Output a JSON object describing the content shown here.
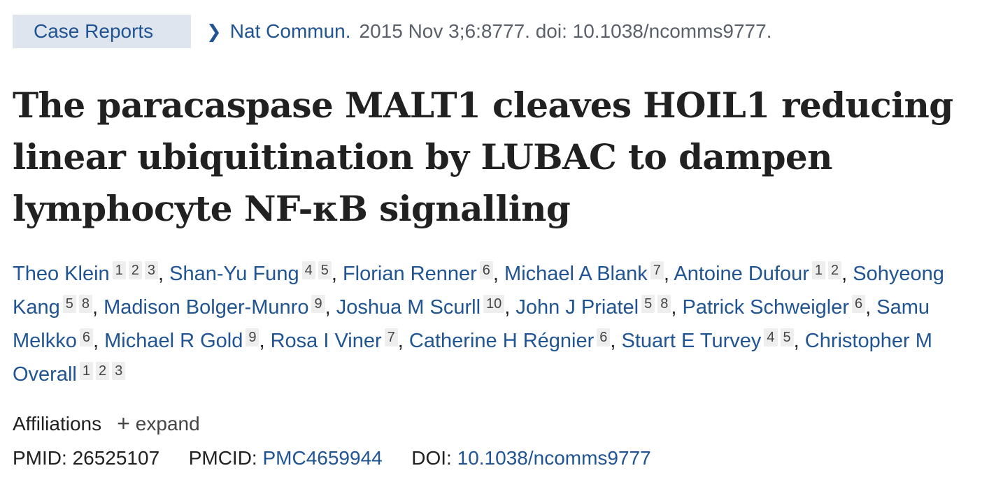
{
  "header": {
    "publication_type": "Case Reports",
    "journal": "Nat Commun.",
    "citation": "2015 Nov 3;6:8777. doi: 10.1038/ncomms9777."
  },
  "title": "The paracaspase MALT1 cleaves HOIL1 reducing linear ubiquitination by LUBAC to dampen lymphocyte NF-κB signalling",
  "authors": [
    {
      "name": "Theo Klein",
      "affs": [
        "1",
        "2",
        "3"
      ]
    },
    {
      "name": "Shan-Yu Fung",
      "affs": [
        "4",
        "5"
      ]
    },
    {
      "name": "Florian Renner",
      "affs": [
        "6"
      ]
    },
    {
      "name": "Michael A Blank",
      "affs": [
        "7"
      ]
    },
    {
      "name": "Antoine Dufour",
      "affs": [
        "1",
        "2"
      ]
    },
    {
      "name": "Sohyeong Kang",
      "affs": [
        "5",
        "8"
      ]
    },
    {
      "name": "Madison Bolger-Munro",
      "affs": [
        "9"
      ]
    },
    {
      "name": "Joshua M Scurll",
      "affs": [
        "10"
      ]
    },
    {
      "name": "John J Priatel",
      "affs": [
        "5",
        "8"
      ]
    },
    {
      "name": "Patrick Schweigler",
      "affs": [
        "6"
      ]
    },
    {
      "name": "Samu Melkko",
      "affs": [
        "6"
      ]
    },
    {
      "name": "Michael R Gold",
      "affs": [
        "9"
      ]
    },
    {
      "name": "Rosa I Viner",
      "affs": [
        "7"
      ]
    },
    {
      "name": "Catherine H Régnier",
      "affs": [
        "6"
      ]
    },
    {
      "name": "Stuart E Turvey",
      "affs": [
        "4",
        "5"
      ]
    },
    {
      "name": "Christopher M Overall",
      "affs": [
        "1",
        "2",
        "3"
      ]
    }
  ],
  "affiliations": {
    "label": "Affiliations",
    "toggle_icon": "plus-icon",
    "toggle": "expand"
  },
  "identifiers": {
    "pmid_label": "PMID:",
    "pmid": "26525107",
    "pmcid_label": "PMCID:",
    "pmcid": "PMC4659944",
    "doi_label": "DOI:",
    "doi": "10.1038/ncomms9777"
  },
  "colors": {
    "link": "#205493",
    "pubtype_bg": "#dfe5ef",
    "text": "#212121"
  }
}
